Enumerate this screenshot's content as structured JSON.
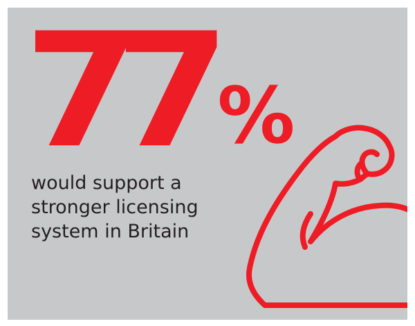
{
  "headline": {
    "number": "77",
    "percent_sign": "%"
  },
  "caption": {
    "lines": [
      "would support a",
      "stronger licensing",
      "system in Britain"
    ]
  },
  "icon": "flexed-bicep-icon",
  "colors": {
    "background": "#c7c8ca",
    "accent": "#ee1c25",
    "text": "#231f20"
  }
}
